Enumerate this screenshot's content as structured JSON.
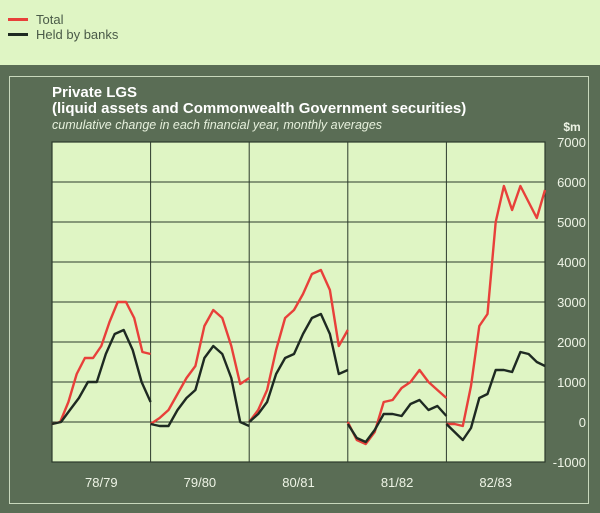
{
  "legend": [
    {
      "label": "Total",
      "color": "#e8403a"
    },
    {
      "label": "Held by banks",
      "color": "#1e2a22"
    }
  ],
  "chart_data": {
    "type": "line",
    "title_line1": "Private LGS",
    "title_line2": "(liquid assets and Commonwealth Government securities)",
    "subtitle": "cumulative change in each financial year, monthly averages",
    "ylabel": "$m",
    "ylim": [
      -1000,
      7000
    ],
    "yticks": [
      7000,
      6000,
      5000,
      4000,
      3000,
      2000,
      1000,
      0,
      -1000
    ],
    "yticklabels": [
      "7000",
      "6000",
      "5000",
      "4000",
      "3000",
      "2000",
      "1000",
      "0",
      "-1000"
    ],
    "grid": true,
    "legend_position": "top-left",
    "categories": [
      "78/79",
      "79/80",
      "80/81",
      "81/82",
      "82/83"
    ],
    "series": [
      {
        "name": "Total",
        "color": "#e8403a",
        "values": [
          [
            -50,
            0,
            500,
            1200,
            1600,
            1600,
            1900,
            2500,
            3000,
            3000,
            2600,
            1750,
            1700
          ],
          [
            -50,
            100,
            300,
            700,
            1100,
            1400,
            2400,
            2800,
            2600,
            1900,
            950,
            1100
          ],
          [
            0,
            300,
            800,
            1800,
            2600,
            2800,
            3200,
            3700,
            3800,
            3300,
            1900,
            2300
          ],
          [
            0,
            -450,
            -550,
            -250,
            500,
            550,
            850,
            1000,
            1300,
            1000,
            800,
            600
          ],
          [
            -50,
            -50,
            -100,
            900,
            2400,
            2700,
            5000,
            5900,
            5300,
            5900,
            5500,
            5100,
            5800
          ]
        ]
      },
      {
        "name": "Held by banks",
        "color": "#1e2a22",
        "values": [
          [
            -50,
            0,
            300,
            600,
            1000,
            1000,
            1700,
            2200,
            2300,
            1800,
            1000,
            500
          ],
          [
            -50,
            -100,
            -100,
            300,
            600,
            800,
            1600,
            1900,
            1700,
            1100,
            0,
            -100
          ],
          [
            0,
            200,
            500,
            1200,
            1600,
            1700,
            2200,
            2600,
            2700,
            2200,
            1200,
            1300
          ],
          [
            -50,
            -400,
            -500,
            -200,
            200,
            200,
            150,
            450,
            550,
            300,
            400,
            150
          ],
          [
            -50,
            -250,
            -450,
            -150,
            600,
            700,
            1300,
            1300,
            1250,
            1750,
            1700,
            1500,
            1400
          ]
        ]
      }
    ]
  }
}
